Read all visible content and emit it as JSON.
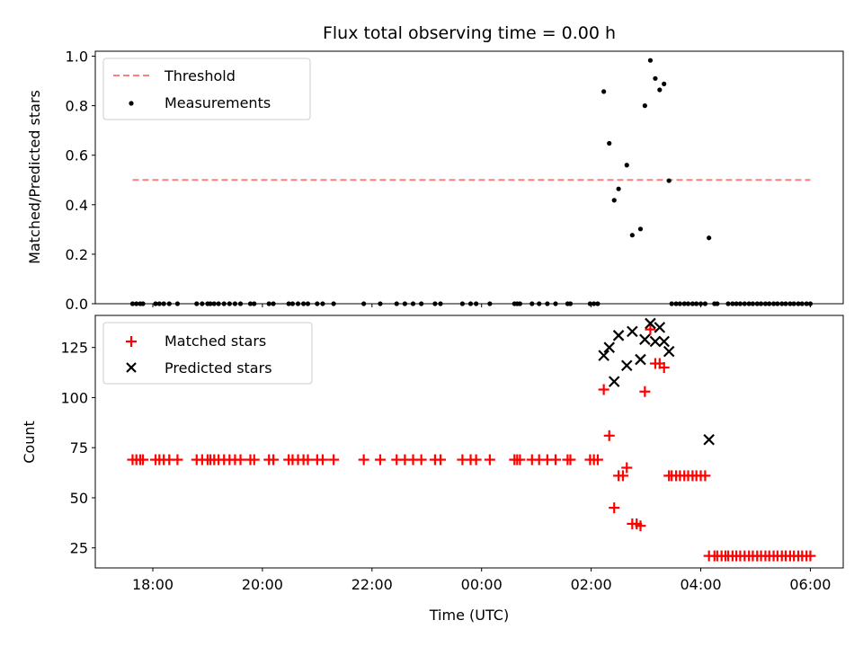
{
  "chart_data": [
    {
      "type": "scatter",
      "title": "Flux total observing time = 0.00 h",
      "xlabel": "",
      "ylabel": "Matched/Predicted stars",
      "ylim": [
        0,
        1.02
      ],
      "yticks": [
        0.0,
        0.2,
        0.4,
        0.6,
        0.8,
        1.0
      ],
      "ytick_labels": [
        "0.0",
        "0.2",
        "0.4",
        "0.6",
        "0.8",
        "1.0"
      ],
      "xlim": [
        16.95,
        30.6
      ],
      "xticks": [
        18,
        20,
        22,
        24,
        26,
        28,
        30
      ],
      "legend": "top-left",
      "threshold": {
        "name": "Threshold",
        "y": 0.5,
        "x_range": [
          17.63,
          30.0
        ],
        "color": "#ff7f7f",
        "style": "dashed"
      },
      "series": [
        {
          "name": "Measurements",
          "color": "#000000",
          "points": [
            [
              17.63,
              0
            ],
            [
              17.7,
              0
            ],
            [
              17.77,
              0
            ],
            [
              17.82,
              0
            ],
            [
              18.05,
              0
            ],
            [
              18.12,
              0
            ],
            [
              18.2,
              0
            ],
            [
              18.3,
              0
            ],
            [
              18.45,
              0
            ],
            [
              18.8,
              0
            ],
            [
              18.9,
              0
            ],
            [
              19.0,
              0
            ],
            [
              19.05,
              0
            ],
            [
              19.12,
              0
            ],
            [
              19.2,
              0
            ],
            [
              19.3,
              0
            ],
            [
              19.4,
              0
            ],
            [
              19.5,
              0
            ],
            [
              19.6,
              0
            ],
            [
              19.78,
              0
            ],
            [
              19.85,
              0
            ],
            [
              20.12,
              0
            ],
            [
              20.2,
              0
            ],
            [
              20.48,
              0
            ],
            [
              20.55,
              0
            ],
            [
              20.65,
              0
            ],
            [
              20.75,
              0
            ],
            [
              20.83,
              0
            ],
            [
              21.0,
              0
            ],
            [
              21.1,
              0
            ],
            [
              21.3,
              0
            ],
            [
              21.85,
              0
            ],
            [
              22.15,
              0
            ],
            [
              22.45,
              0
            ],
            [
              22.6,
              0
            ],
            [
              22.75,
              0
            ],
            [
              22.9,
              0
            ],
            [
              23.15,
              0
            ],
            [
              23.25,
              0
            ],
            [
              23.65,
              0
            ],
            [
              23.8,
              0
            ],
            [
              23.9,
              0
            ],
            [
              24.15,
              0
            ],
            [
              24.6,
              0
            ],
            [
              24.65,
              0
            ],
            [
              24.7,
              0
            ],
            [
              24.92,
              0
            ],
            [
              25.05,
              0
            ],
            [
              25.2,
              0
            ],
            [
              25.35,
              0
            ],
            [
              25.57,
              0
            ],
            [
              25.62,
              0
            ],
            [
              25.98,
              0
            ],
            [
              26.05,
              0
            ],
            [
              26.12,
              0
            ],
            [
              26.23,
              0.857
            ],
            [
              26.33,
              0.648
            ],
            [
              26.42,
              0.418
            ],
            [
              26.5,
              0.464
            ],
            [
              26.65,
              0.56
            ],
            [
              26.75,
              0.277
            ],
            [
              26.9,
              0.302
            ],
            [
              26.98,
              0.8
            ],
            [
              27.08,
              0.983
            ],
            [
              27.17,
              0.91
            ],
            [
              27.25,
              0.864
            ],
            [
              27.33,
              0.888
            ],
            [
              27.42,
              0.497
            ],
            [
              28.15,
              0.266
            ],
            [
              27.47,
              0
            ],
            [
              27.55,
              0
            ],
            [
              27.62,
              0
            ],
            [
              27.7,
              0
            ],
            [
              27.77,
              0
            ],
            [
              27.85,
              0
            ],
            [
              27.92,
              0
            ],
            [
              28.0,
              0
            ],
            [
              28.08,
              0
            ],
            [
              28.25,
              0
            ],
            [
              28.3,
              0
            ],
            [
              28.5,
              0
            ],
            [
              28.58,
              0
            ],
            [
              28.65,
              0
            ],
            [
              28.72,
              0
            ],
            [
              28.8,
              0
            ],
            [
              28.88,
              0
            ],
            [
              28.95,
              0
            ],
            [
              29.03,
              0
            ],
            [
              29.1,
              0
            ],
            [
              29.18,
              0
            ],
            [
              29.25,
              0
            ],
            [
              29.33,
              0
            ],
            [
              29.4,
              0
            ],
            [
              29.48,
              0
            ],
            [
              29.55,
              0
            ],
            [
              29.63,
              0
            ],
            [
              29.7,
              0
            ],
            [
              29.78,
              0
            ],
            [
              29.85,
              0
            ],
            [
              29.93,
              0
            ],
            [
              30.0,
              0
            ]
          ]
        }
      ]
    },
    {
      "type": "scatter",
      "title": "",
      "xlabel": "Time (UTC)",
      "ylabel": "Count",
      "ylim": [
        15,
        141
      ],
      "yticks": [
        25,
        50,
        75,
        100,
        125
      ],
      "ytick_labels": [
        "25",
        "50",
        "75",
        "100",
        "125"
      ],
      "xlim": [
        16.95,
        30.6
      ],
      "xticks": [
        18,
        20,
        22,
        24,
        26,
        28,
        30
      ],
      "xtick_labels": [
        "18:00",
        "20:00",
        "22:00",
        "00:00",
        "02:00",
        "04:00",
        "06:00"
      ],
      "legend": "top-left",
      "series": [
        {
          "name": "Matched stars",
          "marker": "plus",
          "color": "#ff0000",
          "points": [
            [
              17.63,
              69
            ],
            [
              17.7,
              69
            ],
            [
              17.77,
              69
            ],
            [
              17.82,
              69
            ],
            [
              18.05,
              69
            ],
            [
              18.12,
              69
            ],
            [
              18.2,
              69
            ],
            [
              18.3,
              69
            ],
            [
              18.45,
              69
            ],
            [
              18.8,
              69
            ],
            [
              18.9,
              69
            ],
            [
              19.0,
              69
            ],
            [
              19.05,
              69
            ],
            [
              19.12,
              69
            ],
            [
              19.2,
              69
            ],
            [
              19.3,
              69
            ],
            [
              19.4,
              69
            ],
            [
              19.5,
              69
            ],
            [
              19.6,
              69
            ],
            [
              19.78,
              69
            ],
            [
              19.85,
              69
            ],
            [
              20.12,
              69
            ],
            [
              20.2,
              69
            ],
            [
              20.48,
              69
            ],
            [
              20.55,
              69
            ],
            [
              20.65,
              69
            ],
            [
              20.75,
              69
            ],
            [
              20.83,
              69
            ],
            [
              21.0,
              69
            ],
            [
              21.1,
              69
            ],
            [
              21.3,
              69
            ],
            [
              21.85,
              69
            ],
            [
              22.15,
              69
            ],
            [
              22.45,
              69
            ],
            [
              22.6,
              69
            ],
            [
              22.75,
              69
            ],
            [
              22.9,
              69
            ],
            [
              23.15,
              69
            ],
            [
              23.25,
              69
            ],
            [
              23.65,
              69
            ],
            [
              23.8,
              69
            ],
            [
              23.9,
              69
            ],
            [
              24.15,
              69
            ],
            [
              24.6,
              69
            ],
            [
              24.65,
              69
            ],
            [
              24.7,
              69
            ],
            [
              24.92,
              69
            ],
            [
              25.05,
              69
            ],
            [
              25.2,
              69
            ],
            [
              25.35,
              69
            ],
            [
              25.57,
              69
            ],
            [
              25.62,
              69
            ],
            [
              25.98,
              69
            ],
            [
              26.05,
              69
            ],
            [
              26.12,
              69
            ],
            [
              26.23,
              104
            ],
            [
              26.33,
              81
            ],
            [
              26.42,
              45
            ],
            [
              26.5,
              61
            ],
            [
              26.58,
              61
            ],
            [
              26.65,
              65
            ],
            [
              26.75,
              37
            ],
            [
              26.83,
              37
            ],
            [
              26.9,
              36
            ],
            [
              26.98,
              103
            ],
            [
              27.08,
              134
            ],
            [
              27.17,
              117
            ],
            [
              27.25,
              117
            ],
            [
              27.33,
              115
            ],
            [
              27.42,
              61
            ],
            [
              27.47,
              61
            ],
            [
              27.55,
              61
            ],
            [
              27.62,
              61
            ],
            [
              27.7,
              61
            ],
            [
              27.77,
              61
            ],
            [
              27.85,
              61
            ],
            [
              27.92,
              61
            ],
            [
              28.0,
              61
            ],
            [
              28.08,
              61
            ],
            [
              28.15,
              21
            ],
            [
              28.25,
              21
            ],
            [
              28.3,
              21
            ],
            [
              28.38,
              21
            ],
            [
              28.45,
              21
            ],
            [
              28.5,
              21
            ],
            [
              28.58,
              21
            ],
            [
              28.65,
              21
            ],
            [
              28.72,
              21
            ],
            [
              28.8,
              21
            ],
            [
              28.88,
              21
            ],
            [
              28.95,
              21
            ],
            [
              29.03,
              21
            ],
            [
              29.1,
              21
            ],
            [
              29.18,
              21
            ],
            [
              29.25,
              21
            ],
            [
              29.33,
              21
            ],
            [
              29.4,
              21
            ],
            [
              29.48,
              21
            ],
            [
              29.55,
              21
            ],
            [
              29.63,
              21
            ],
            [
              29.7,
              21
            ],
            [
              29.78,
              21
            ],
            [
              29.85,
              21
            ],
            [
              29.93,
              21
            ],
            [
              30.0,
              21
            ]
          ]
        },
        {
          "name": "Predicted stars",
          "marker": "x",
          "color": "#000000",
          "points": [
            [
              26.23,
              121
            ],
            [
              26.33,
              125
            ],
            [
              26.42,
              108
            ],
            [
              26.5,
              131
            ],
            [
              26.65,
              116
            ],
            [
              26.75,
              133
            ],
            [
              26.9,
              119
            ],
            [
              26.98,
              129
            ],
            [
              27.08,
              137
            ],
            [
              27.17,
              128
            ],
            [
              27.25,
              135
            ],
            [
              27.33,
              128
            ],
            [
              27.42,
              123
            ],
            [
              28.15,
              79
            ]
          ]
        }
      ]
    }
  ]
}
